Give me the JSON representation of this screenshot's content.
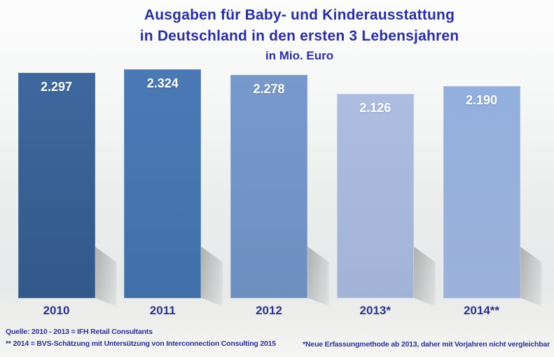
{
  "chart_data": {
    "type": "bar",
    "title_lines": [
      "Ausgaben für Baby- und Kinderausstattung",
      "in Deutschland in den ersten 3 Lebensjahren"
    ],
    "subtitle": "in Mio. Euro",
    "ylabel": "Mio. Euro",
    "categories": [
      "2010",
      "2011",
      "2012",
      "2013*",
      "2014**"
    ],
    "values": [
      2297,
      2324,
      2278,
      2126,
      2190
    ],
    "value_labels": [
      "2.297",
      "2.324",
      "2.278",
      "2.126",
      "2.190"
    ],
    "grid": false,
    "legend": false,
    "axis_visible": false,
    "bar_colors": [
      {
        "top": "#3e689e",
        "bottom": "#33588a",
        "border": "#55779f"
      },
      {
        "top": "#4b79b5",
        "bottom": "#4170a9",
        "border": "#6a8fbe"
      },
      {
        "top": "#7899cb",
        "bottom": "#6d8fc0",
        "border": "#8fa9d2"
      },
      {
        "top": "#adbde1",
        "bottom": "#a2b3d8",
        "border": "#becce7"
      },
      {
        "top": "#92afde",
        "bottom": "#9cb1da",
        "border": "#a9bfe5"
      }
    ],
    "value_label_color": "#ffffff",
    "category_label_color": "#2a3488",
    "title_color": "#2b2f9f"
  },
  "footnotes": {
    "left_line1": "Quelle: 2010 - 2013 = IFH Retail Consultants",
    "left_line2": "** 2014 = BVS-Schätzung mit Untersützung von Interconnection Consulting 2015",
    "right": "*Neue Erfassungmethode ab 2013, daher mit Vorjahren nicht vergleichbar",
    "color": "#2c3294"
  }
}
